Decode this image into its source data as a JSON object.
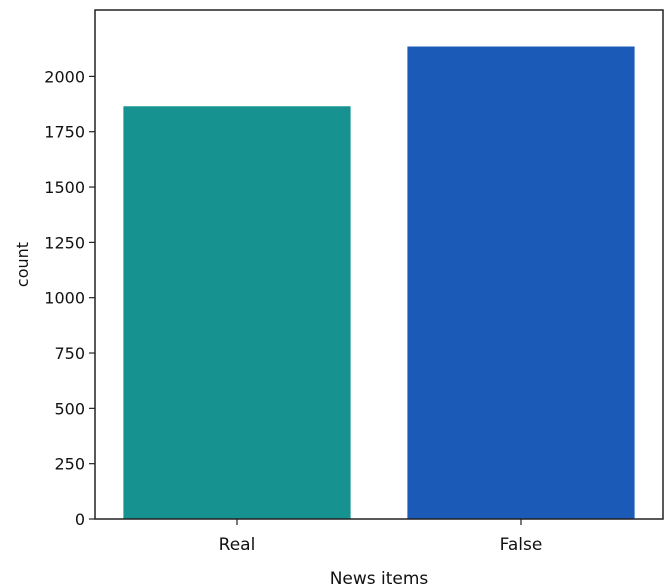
{
  "chart_data": {
    "type": "bar",
    "categories": [
      "Real",
      "False"
    ],
    "values": [
      1865,
      2135
    ],
    "colors": [
      "#169390",
      "#1b5ab7"
    ],
    "title": "",
    "xlabel": "News items",
    "ylabel": "count",
    "ylim": [
      0,
      2300
    ],
    "yticks": [
      0,
      250,
      500,
      750,
      1000,
      1250,
      1500,
      1750,
      2000
    ],
    "grid": false,
    "legend": "none"
  }
}
